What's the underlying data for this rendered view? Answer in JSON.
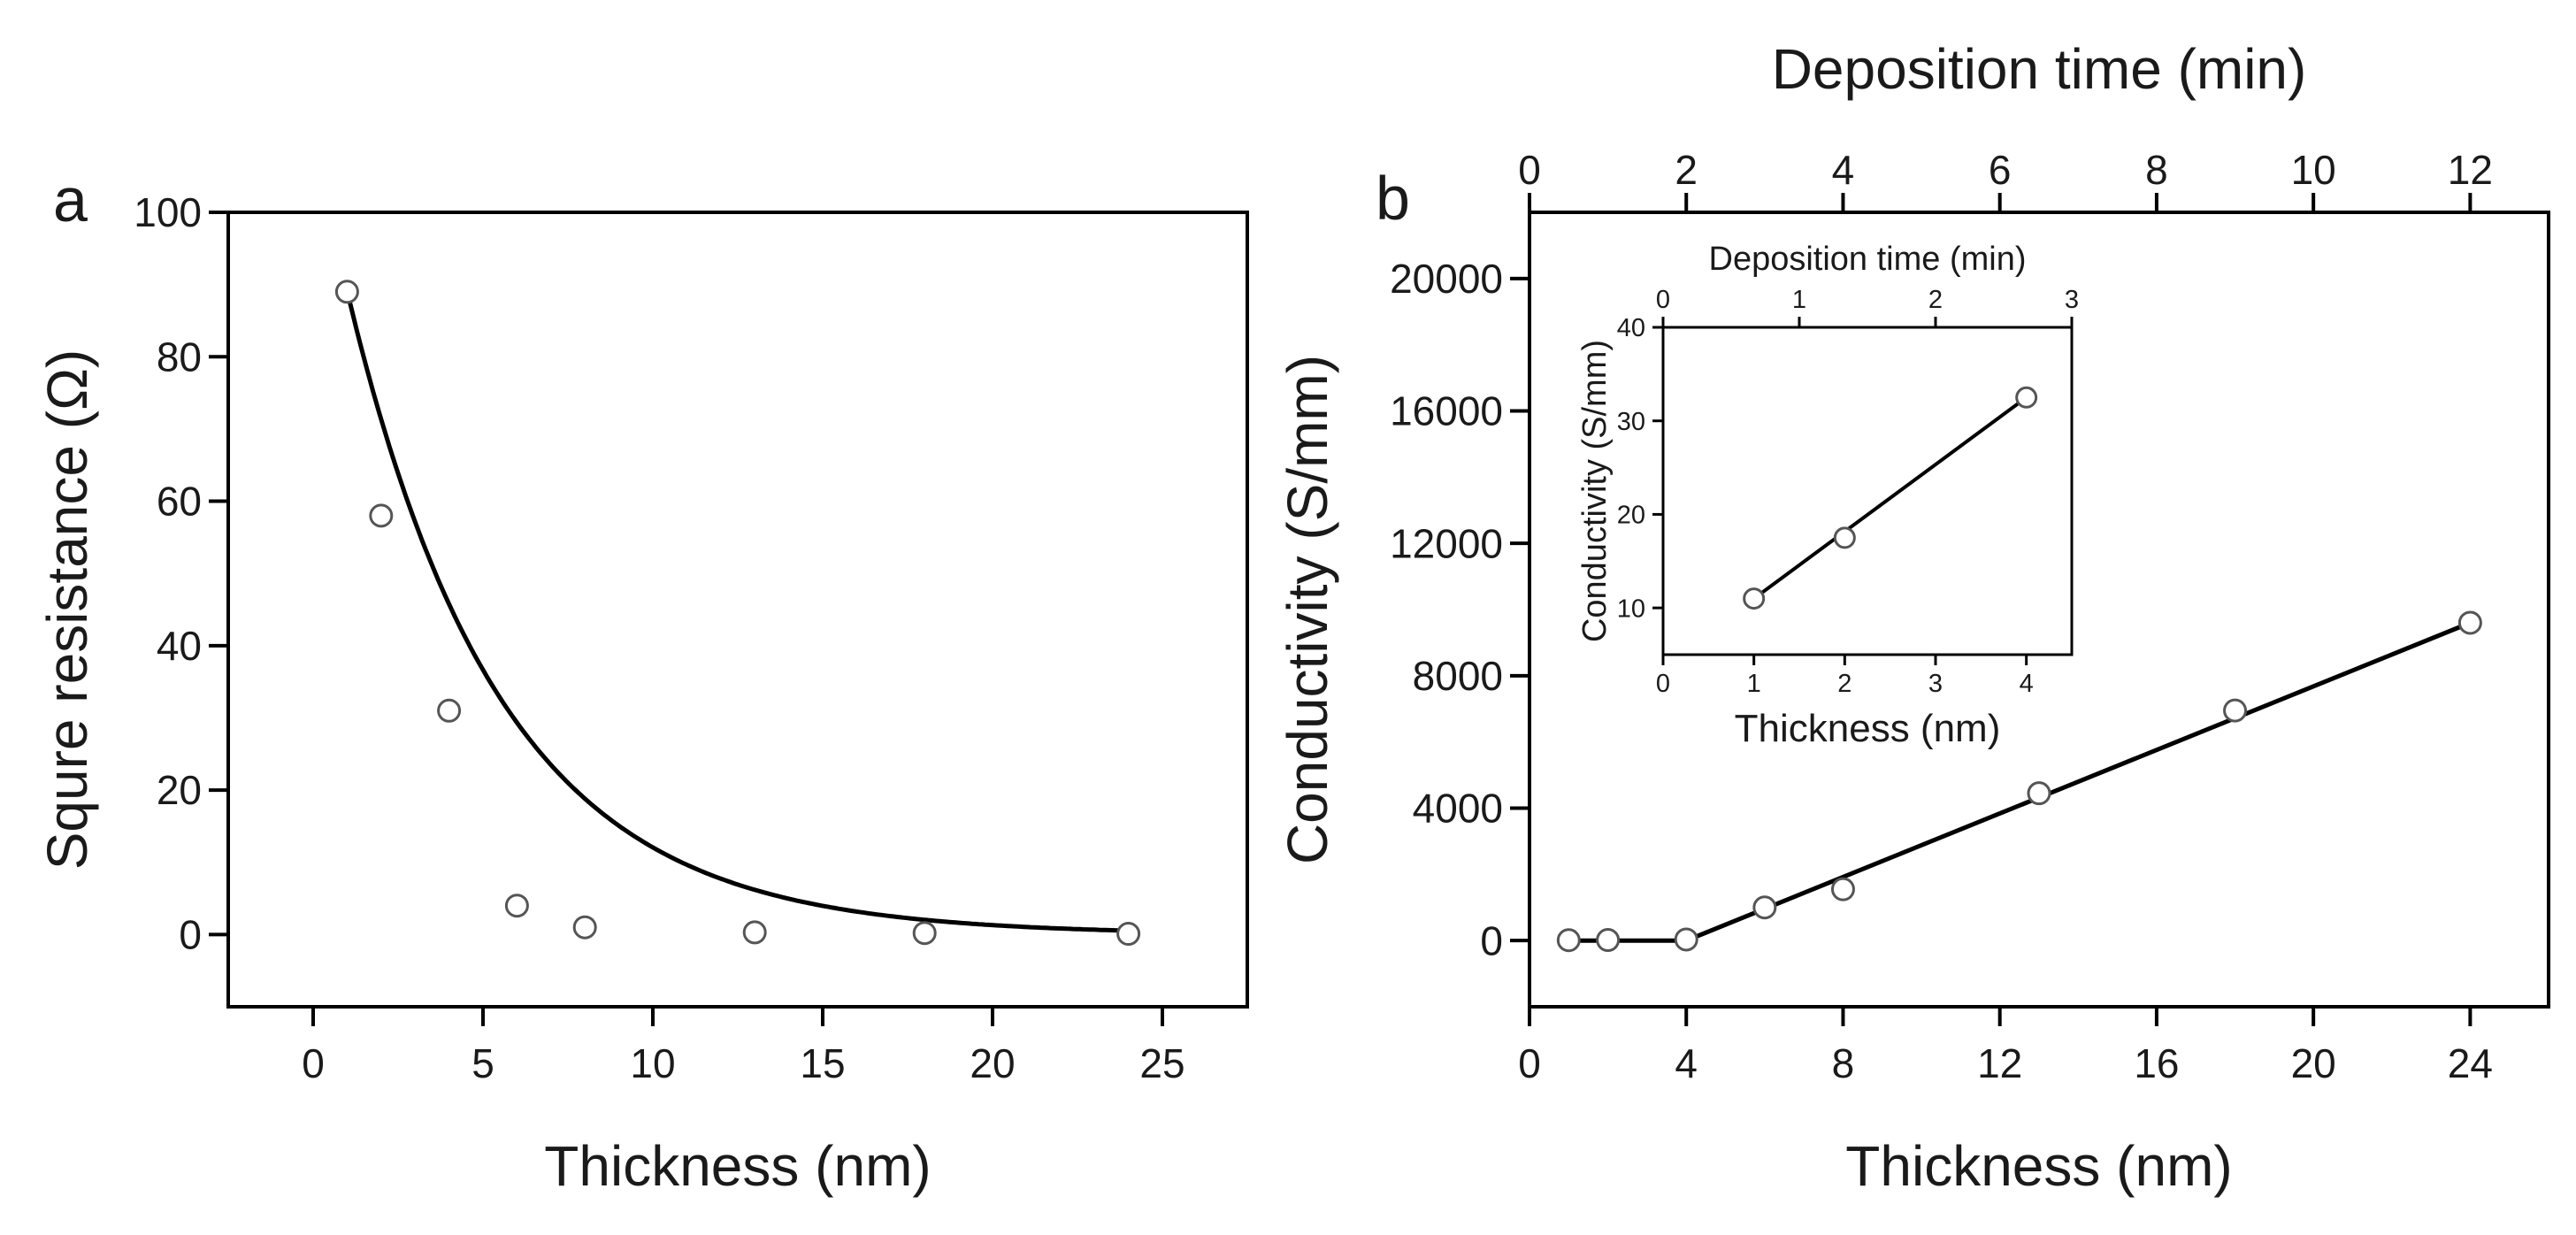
{
  "chart_data": [
    {
      "panel_label": "a",
      "type": "scatter",
      "xlabel": "Thickness (nm)",
      "ylabel": "Squre resistance (Ω)",
      "xlim": [
        -2.5,
        27.5
      ],
      "ylim": [
        -10,
        100
      ],
      "xticks": [
        0,
        5,
        10,
        15,
        20,
        25
      ],
      "yticks": [
        0,
        20,
        40,
        60,
        80,
        100
      ],
      "points": {
        "x": [
          1,
          2,
          4,
          6,
          8,
          13,
          18,
          24
        ],
        "y": [
          89,
          58,
          31,
          4,
          1,
          0.3,
          0.2,
          0.1
        ]
      },
      "fit": {
        "kind": "exponential decay",
        "model": "y = A*exp(-x/t)",
        "A": 111.3,
        "t": 4.5
      }
    },
    {
      "panel_label": "b",
      "type": "scatter",
      "xlabel": "Thickness (nm)",
      "ylabel": "Conductivity (S/mm)",
      "top_xlabel": "Deposition time (min)",
      "xlim": [
        0,
        26
      ],
      "ylim": [
        -2000,
        22000
      ],
      "xticks": [
        0,
        4,
        8,
        12,
        16,
        20,
        24
      ],
      "yticks": [
        0,
        4000,
        8000,
        12000,
        16000,
        20000
      ],
      "top_xlim": [
        0,
        13
      ],
      "top_xticks": [
        0,
        2,
        4,
        6,
        8,
        10,
        12
      ],
      "points": {
        "x": [
          1,
          2,
          4,
          6,
          8,
          13,
          18,
          24
        ],
        "y": [
          11,
          17,
          32,
          1000,
          1550,
          4450,
          6950,
          9600
        ]
      },
      "fit": {
        "kind": "piecewise linear",
        "line_x": [
          1,
          4,
          24
        ],
        "line_y": [
          0,
          0,
          9600
        ]
      },
      "inset": {
        "type": "scatter",
        "xlabel": "Thickness (nm)",
        "ylabel": "Conductivity (S/mm)",
        "top_xlabel": "Deposition time (min)",
        "xlim": [
          0,
          4.5
        ],
        "ylim": [
          5,
          40
        ],
        "xticks": [
          0,
          1,
          2,
          3,
          4
        ],
        "yticks": [
          10,
          20,
          30,
          40
        ],
        "top_xlim": [
          0,
          3
        ],
        "top_xticks": [
          0,
          1,
          2,
          3
        ],
        "points": {
          "x": [
            1,
            2,
            4
          ],
          "y": [
            11,
            17.5,
            32.5
          ]
        },
        "fit": {
          "kind": "linear",
          "line_x": [
            1,
            4
          ],
          "line_y": [
            11,
            32.5
          ]
        }
      }
    }
  ]
}
